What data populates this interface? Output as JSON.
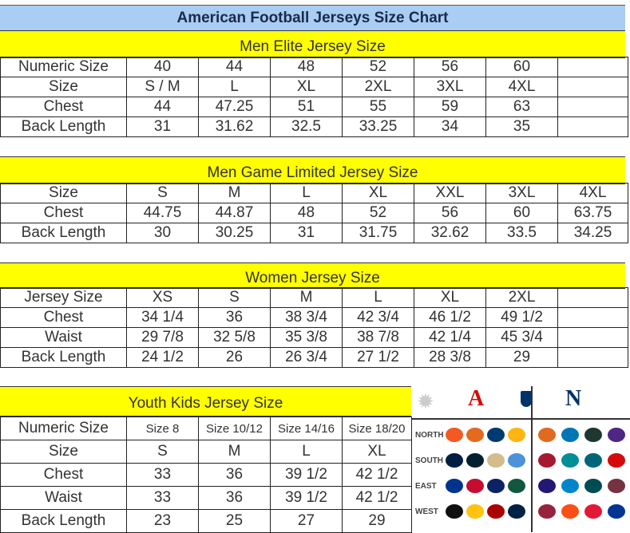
{
  "title": "American Football Jerseys Size Chart",
  "colors": {
    "title_bg": "#a9cdf3",
    "section_bg": "#ffff00"
  },
  "sections": [
    {
      "id": "men-elite",
      "title": "Men Elite Jersey Size",
      "rows": [
        [
          "Numeric Size",
          "40",
          "44",
          "48",
          "52",
          "56",
          "60",
          ""
        ],
        [
          "Size",
          "S / M",
          "L",
          "XL",
          "2XL",
          "3XL",
          "4XL",
          ""
        ],
        [
          "Chest",
          "44",
          "47.25",
          "51",
          "55",
          "59",
          "63",
          ""
        ],
        [
          "Back Length",
          "31",
          "31.62",
          "32.5",
          "33.25",
          "34",
          "35",
          ""
        ]
      ]
    },
    {
      "id": "men-game-limited",
      "title": "Men Game Limited Jersey Size",
      "rows": [
        [
          "Size",
          "S",
          "M",
          "L",
          "XL",
          "XXL",
          "3XL",
          "4XL"
        ],
        [
          "Chest",
          "44.75",
          "44.87",
          "48",
          "52",
          "56",
          "60",
          "63.75"
        ],
        [
          "Back Length",
          "30",
          "30.25",
          "31",
          "31.75",
          "32.62",
          "33.5",
          "34.25"
        ]
      ]
    },
    {
      "id": "women",
      "title": "Women Jersey Size",
      "rows": [
        [
          "Jersey Size",
          "XS",
          "S",
          "M",
          "L",
          "XL",
          "2XL",
          ""
        ],
        [
          "Chest",
          "34 1/4",
          "36",
          "38 3/4",
          "42 3/4",
          "46 1/2",
          "49 1/2",
          ""
        ],
        [
          "Waist",
          "29 7/8",
          "32 5/8",
          "35 3/8",
          "38 7/8",
          "42 1/4",
          "45 3/4",
          ""
        ],
        [
          "Back Length",
          "24 1/2",
          "26",
          "26 3/4",
          "27 1/2",
          "28 3/8",
          "29",
          ""
        ]
      ]
    },
    {
      "id": "youth-kids",
      "title": "Youth Kids Jersey Size",
      "rows": [
        [
          "Numeric Size",
          "Size 8",
          "Size 10/12",
          "Size 14/16",
          "Size 18/20"
        ],
        [
          "Size",
          "S",
          "M",
          "L",
          "XL"
        ],
        [
          "Chest",
          "33",
          "36",
          "39 1/2",
          "42 1/2"
        ],
        [
          "Waist",
          "33",
          "36",
          "39 1/2",
          "42 1/2"
        ],
        [
          "Back Length",
          "23",
          "25",
          "27",
          "29"
        ]
      ]
    }
  ],
  "logos_panel": {
    "divisions": [
      "NORTH",
      "SOUTH",
      "EAST",
      "WEST"
    ],
    "afc_colors": [
      [
        "#f15a22",
        "#e36a1e",
        "#003a70",
        "#ffb612"
      ],
      [
        "#041e42",
        "#03202f",
        "#d3bc8d",
        "#4b92db"
      ],
      [
        "#00338d",
        "#c60c30",
        "#0b2265",
        "#125740"
      ],
      [
        "#101010",
        "#ffc20e",
        "#aa0000",
        "#002244"
      ]
    ],
    "nfc_colors": [
      [
        "#e06a1f",
        "#0076b6",
        "#203731",
        "#4f2683"
      ],
      [
        "#a71930",
        "#008e97",
        "#006778",
        "#d50a0a"
      ],
      [
        "#241773",
        "#0085ca",
        "#004c54",
        "#773141"
      ],
      [
        "#97233f",
        "#fb4f14",
        "#e31837",
        "#003594"
      ]
    ]
  }
}
